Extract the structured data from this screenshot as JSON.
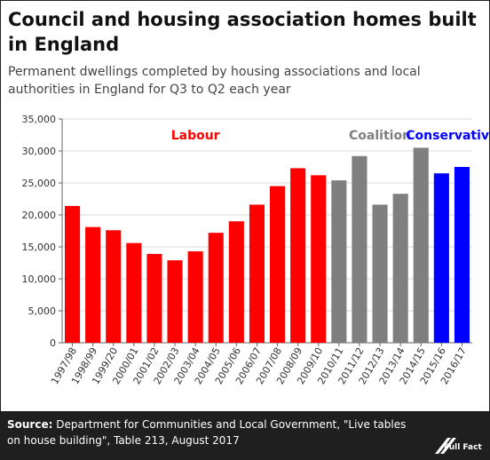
{
  "title": "Council and housing association homes built in England",
  "subtitle": "Permanent dwellings completed by housing associations and local authorities in England for Q3 to Q2 each year",
  "source_label": "Source:",
  "source_text": "Department for Communities and Local Government, \"Live tables on house building\", Table 213, August 2017",
  "logo_text": "Full Fact",
  "colors": {
    "labour": "#ff0000",
    "coalition": "#7f7f7f",
    "conservative": "#0000ff"
  },
  "chart_data": {
    "type": "bar",
    "categories": [
      "1997/98",
      "1998/99",
      "1999/20",
      "2000/01",
      "2001/02",
      "2002/03",
      "2003/04",
      "2004/05",
      "2005/06",
      "2006/07",
      "2007/08",
      "2008/09",
      "2009/10",
      "2010/11",
      "2011/12",
      "2012/13",
      "2013/14",
      "2014/15",
      "2015/16",
      "2016/17"
    ],
    "values": [
      21400,
      18100,
      17600,
      15600,
      13900,
      12900,
      14300,
      17200,
      19000,
      21600,
      24500,
      27300,
      26200,
      25400,
      29200,
      21600,
      23300,
      30500,
      26500,
      27500
    ],
    "groups": [
      "labour",
      "labour",
      "labour",
      "labour",
      "labour",
      "labour",
      "labour",
      "labour",
      "labour",
      "labour",
      "labour",
      "labour",
      "labour",
      "coalition",
      "coalition",
      "coalition",
      "coalition",
      "coalition",
      "conservative",
      "conservative"
    ],
    "annotations": [
      {
        "text": "Labour",
        "group": "labour"
      },
      {
        "text": "Coalition",
        "group": "coalition"
      },
      {
        "text": "Conservative",
        "group": "conservative"
      }
    ],
    "yticks": [
      "0",
      "5,000",
      "10,000",
      "15,000",
      "20,000",
      "25,000",
      "30,000",
      "35,000"
    ],
    "ylim": [
      0,
      35000
    ],
    "grid": true
  }
}
